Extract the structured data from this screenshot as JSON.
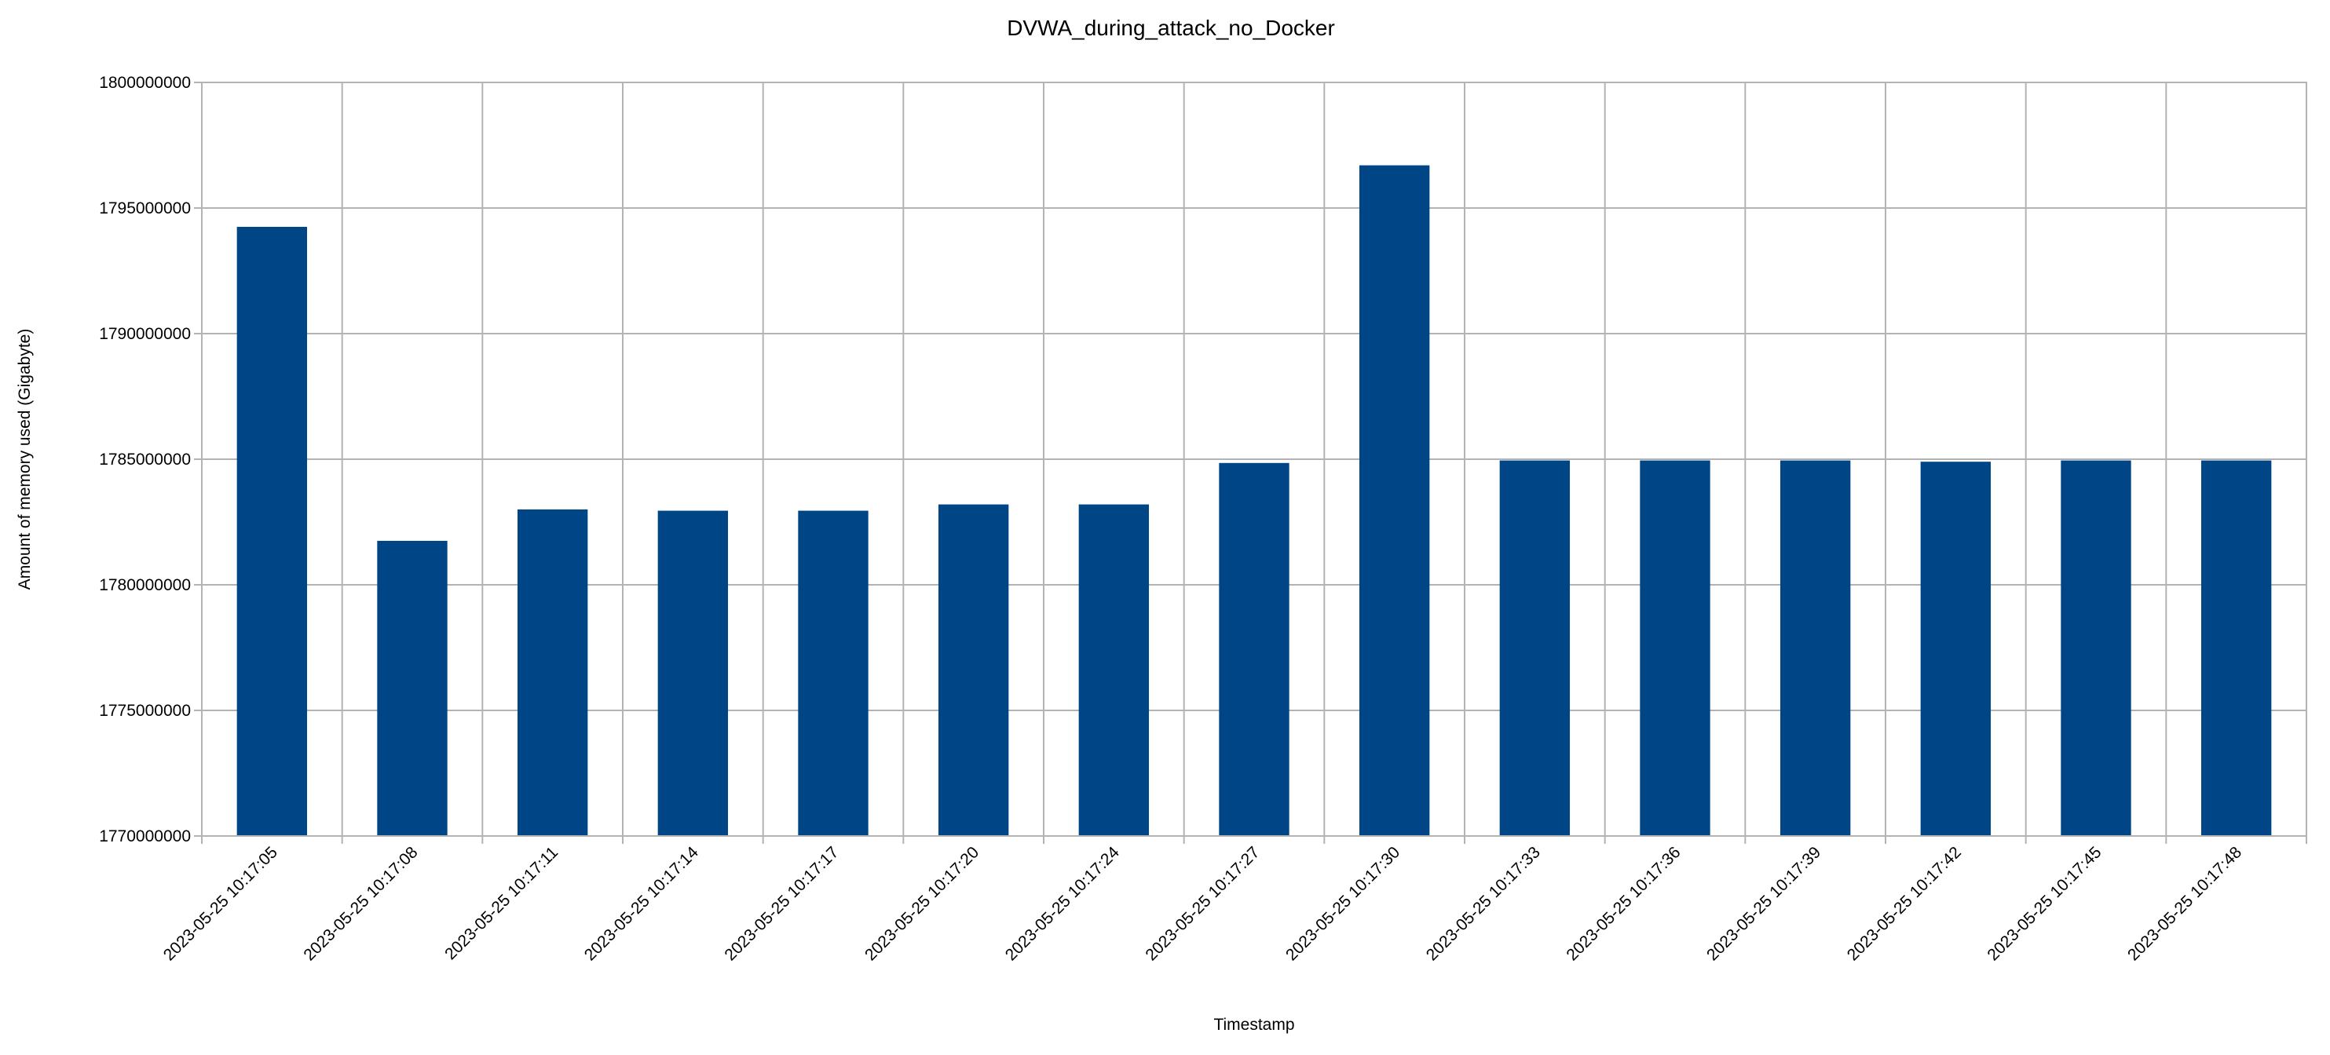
{
  "chart_data": {
    "type": "bar",
    "title": "DVWA_during_attack_no_Docker",
    "xlabel": "Timestamp",
    "ylabel": "Amount of memory used (Gigabyte)",
    "ylim": [
      1770000000,
      1800000000
    ],
    "yticks": [
      1770000000,
      1775000000,
      1780000000,
      1785000000,
      1790000000,
      1795000000,
      1800000000
    ],
    "ytick_labels": [
      "1770000000",
      "1775000000",
      "1780000000",
      "1785000000",
      "1790000000",
      "1795000000",
      "1800000000"
    ],
    "grid": true,
    "legend": "none",
    "bar_color": "#004586",
    "categories": [
      "2023-05-25 10:17:05",
      "2023-05-25 10:17:08",
      "2023-05-25 10:17:11",
      "2023-05-25 10:17:14",
      "2023-05-25 10:17:17",
      "2023-05-25 10:17:20",
      "2023-05-25 10:17:24",
      "2023-05-25 10:17:27",
      "2023-05-25 10:17:30",
      "2023-05-25 10:17:33",
      "2023-05-25 10:17:36",
      "2023-05-25 10:17:39",
      "2023-05-25 10:17:42",
      "2023-05-25 10:17:45",
      "2023-05-25 10:17:48"
    ],
    "values": [
      1794250000,
      1781750000,
      1783000000,
      1782950000,
      1782950000,
      1783200000,
      1783200000,
      1784850000,
      1796700000,
      1784950000,
      1784950000,
      1784950000,
      1784900000,
      1784950000,
      1784950000
    ]
  }
}
